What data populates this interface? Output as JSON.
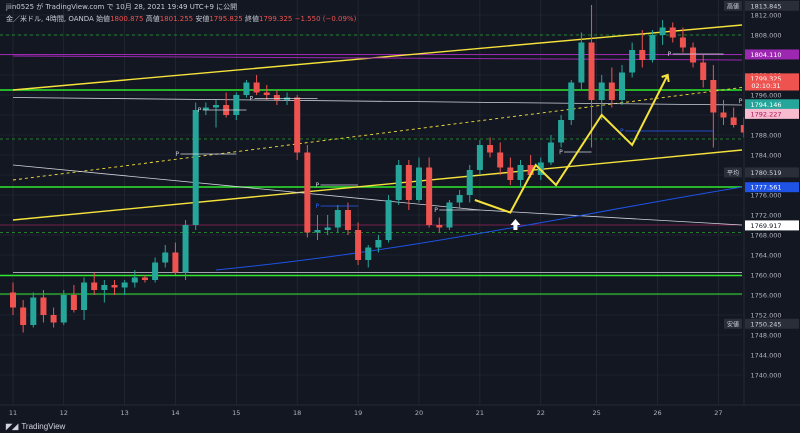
{
  "header": {
    "publish_line": "jiin0525 が TradingView.com で 10月 28, 2021 19:49 UTC+9 に公開",
    "symbol_title": "金／米ドル, 4時間, OANDA",
    "open_label": "始値",
    "open_value": "1800.875",
    "high_label": "高値",
    "high_value": "1801.255",
    "low_label": "安値",
    "low_value": "1795.825",
    "close_label": "終値",
    "close_value": "1799.325",
    "change_value": "−1.550 (−0.09%)"
  },
  "footer": {
    "brand": "TradingView"
  },
  "colors": {
    "bg": "#131722",
    "up": "#26a69a",
    "down": "#ef5350",
    "grid": "#2a2e39",
    "axis_text": "#b2b5be",
    "yellow": "#f5e23b",
    "green": "#2ee82e",
    "purple": "#9c27b0",
    "blue": "#2962ff"
  },
  "chart_data": {
    "type": "candlestick",
    "timeframe": "4時間",
    "ylim": [
      1734,
      1815
    ],
    "yticks": [
      1740,
      1744,
      1748,
      1752,
      1756,
      1760,
      1764,
      1768,
      1772,
      1776,
      1780,
      1784,
      1788,
      1792,
      1796,
      1800,
      1804,
      1808,
      1812
    ],
    "xtick_labels": [
      "11",
      "12",
      "13",
      "14",
      "15",
      "18",
      "19",
      "20",
      "21",
      "22",
      "25",
      "26",
      "27"
    ],
    "price_labels": [
      {
        "text": "高値",
        "value": 1813.845,
        "tag": true,
        "bg": "#2a2e39",
        "fg": "#d1d4dc"
      },
      {
        "text": "1813.845",
        "value": 1813.845,
        "bg": "#2a2e39",
        "fg": "#d1d4dc"
      },
      {
        "text": "1804.110",
        "value": 1804.11,
        "bg": "#9c27b0",
        "fg": "#ffffff"
      },
      {
        "text": "1799.325",
        "value": 1799.325,
        "bg": "#ef5350",
        "fg": "#ffffff"
      },
      {
        "text": "02:10:31",
        "value": 1797.9,
        "bg": "#ef5350",
        "fg": "#ffffff"
      },
      {
        "text": "1794.146",
        "value": 1794.146,
        "bg": "#26a69a",
        "fg": "#ffffff"
      },
      {
        "text": "1792.227",
        "value": 1792.227,
        "bg": "#f8bbd0",
        "fg": "#ad1457"
      },
      {
        "text": "平均",
        "value": 1780.519,
        "tag": true,
        "bg": "#2a2e39",
        "fg": "#d1d4dc"
      },
      {
        "text": "1780.519",
        "value": 1780.519,
        "bg": "#2a2e39",
        "fg": "#d1d4dc"
      },
      {
        "text": "1777.561",
        "value": 1777.561,
        "bg": "#1e53e5",
        "fg": "#ffffff"
      },
      {
        "text": "1769.917",
        "value": 1769.917,
        "bg": "#ffffff",
        "fg": "#131722"
      },
      {
        "text": "安値",
        "value": 1750.245,
        "tag": true,
        "bg": "#2a2e39",
        "fg": "#d1d4dc"
      },
      {
        "text": "1750.245",
        "value": 1750.245,
        "bg": "#2a2e39",
        "fg": "#d1d4dc"
      }
    ],
    "horizontal_lines": [
      {
        "value": 1797.0,
        "color": "#2ee82e",
        "width": 1.6
      },
      {
        "value": 1777.6,
        "color": "#2ee82e",
        "width": 1.6
      },
      {
        "value": 1759.9,
        "color": "#2ee82e",
        "width": 1.4
      },
      {
        "value": 1756.2,
        "color": "#2ee82e",
        "width": 0.9
      },
      {
        "value": 1804.1,
        "color": "#9c27b0",
        "width": 1.0
      },
      {
        "value": 1770.0,
        "color": "#7a1f4f",
        "width": 1.0
      },
      {
        "value": 1808.0,
        "color": "#2ee82e",
        "width": 0.6,
        "dash": true
      },
      {
        "value": 1787.2,
        "color": "#2ee82e",
        "width": 0.6,
        "dash": true
      },
      {
        "value": 1768.5,
        "color": "#2ee82e",
        "width": 0.6,
        "dash": true
      }
    ],
    "trend_lines": [
      {
        "x1": 0,
        "y1": 1797.0,
        "x2": 81,
        "y2": 1810.0,
        "color": "#f5e23b",
        "width": 1.4
      },
      {
        "x1": 0,
        "y1": 1771.0,
        "x2": 81,
        "y2": 1785.0,
        "color": "#f5e23b",
        "width": 1.4
      },
      {
        "x1": 0,
        "y1": 1779.0,
        "x2": 81,
        "y2": 1797.5,
        "color": "#f5e23b",
        "width": 0.9,
        "dash": true
      },
      {
        "x1": 0,
        "y1": 1803.8,
        "x2": 81,
        "y2": 1803.0,
        "color": "#9c27b0",
        "width": 1.0
      },
      {
        "x1": 0,
        "y1": 1795.5,
        "x2": 81,
        "y2": 1794.0,
        "color": "#d1d4dc",
        "width": 0.8
      },
      {
        "x1": 0,
        "y1": 1782.0,
        "x2": 46,
        "y2": 1773.0,
        "color": "#d1d4dc",
        "width": 0.8
      },
      {
        "x1": 46,
        "y1": 1773.0,
        "x2": 81,
        "y2": 1770.0,
        "color": "#d1d4dc",
        "width": 0.8
      },
      {
        "x1": 0,
        "y1": 1760.5,
        "x2": 81,
        "y2": 1760.5,
        "color": "#d1d4dc",
        "width": 0.7
      }
    ],
    "zigzag": [
      {
        "x": 45.5,
        "y": 1775.0
      },
      {
        "x": 49,
        "y": 1772.5
      },
      {
        "x": 51.5,
        "y": 1782.0
      },
      {
        "x": 53.5,
        "y": 1778.0
      },
      {
        "x": 58,
        "y": 1792.0
      },
      {
        "x": 61,
        "y": 1786.0
      },
      {
        "x": 64.5,
        "y": 1800.0
      }
    ],
    "arrow": {
      "x": 49.5,
      "value": 1770.0
    },
    "candles": [
      [
        0,
        1756.5,
        1758.5,
        1752.0,
        1753.5
      ],
      [
        1,
        1753.5,
        1755.0,
        1748.5,
        1750.0
      ],
      [
        2,
        1750.0,
        1756.5,
        1749.5,
        1755.5
      ],
      [
        3,
        1755.5,
        1757.0,
        1750.5,
        1752.0
      ],
      [
        4,
        1752.0,
        1753.5,
        1749.5,
        1750.5
      ],
      [
        5,
        1750.5,
        1757.0,
        1750.0,
        1756.0
      ],
      [
        6,
        1756.0,
        1758.0,
        1752.5,
        1753.0
      ],
      [
        7,
        1753.0,
        1759.5,
        1751.0,
        1758.5
      ],
      [
        8,
        1758.5,
        1760.5,
        1756.0,
        1757.0
      ],
      [
        9,
        1757.0,
        1759.0,
        1754.5,
        1758.0
      ],
      [
        10,
        1758.0,
        1759.0,
        1756.0,
        1757.5
      ],
      [
        11,
        1757.5,
        1759.0,
        1756.0,
        1758.5
      ],
      [
        12,
        1758.5,
        1761.0,
        1757.5,
        1759.5
      ],
      [
        13,
        1759.5,
        1760.0,
        1758.5,
        1759.0
      ],
      [
        14,
        1759.0,
        1763.5,
        1758.5,
        1762.5
      ],
      [
        15,
        1762.5,
        1766.0,
        1761.5,
        1764.5
      ],
      [
        16,
        1764.5,
        1766.5,
        1760.0,
        1760.5
      ],
      [
        17,
        1760.5,
        1771.0,
        1759.0,
        1770.0
      ],
      [
        18,
        1770.0,
        1794.5,
        1769.0,
        1793.0
      ],
      [
        19,
        1793.0,
        1794.5,
        1792.0,
        1793.5
      ],
      [
        20,
        1793.5,
        1795.0,
        1789.5,
        1794.0
      ],
      [
        21,
        1794.0,
        1796.5,
        1791.5,
        1792.0
      ],
      [
        22,
        1792.0,
        1796.5,
        1791.0,
        1796.0
      ],
      [
        23,
        1796.0,
        1799.0,
        1795.5,
        1798.5
      ],
      [
        24,
        1798.5,
        1800.0,
        1796.0,
        1796.5
      ],
      [
        25,
        1796.5,
        1798.0,
        1795.0,
        1796.0
      ],
      [
        26,
        1796.0,
        1797.0,
        1794.0,
        1795.0
      ],
      [
        27,
        1795.0,
        1796.5,
        1794.0,
        1795.5
      ],
      [
        28,
        1795.5,
        1796.0,
        1783.0,
        1784.5
      ],
      [
        29,
        1784.5,
        1786.0,
        1767.5,
        1768.5
      ],
      [
        30,
        1768.5,
        1772.0,
        1767.0,
        1769.0
      ],
      [
        31,
        1769.0,
        1772.0,
        1768.0,
        1769.5
      ],
      [
        32,
        1769.5,
        1774.0,
        1768.5,
        1773.0
      ],
      [
        33,
        1773.0,
        1774.5,
        1768.0,
        1769.0
      ],
      [
        34,
        1769.0,
        1770.5,
        1762.0,
        1763.0
      ],
      [
        35,
        1763.0,
        1766.0,
        1761.5,
        1765.5
      ],
      [
        36,
        1765.5,
        1768.0,
        1764.5,
        1767.0
      ],
      [
        37,
        1767.0,
        1776.0,
        1766.5,
        1775.0
      ],
      [
        38,
        1775.0,
        1783.0,
        1774.0,
        1782.0
      ],
      [
        39,
        1782.0,
        1783.0,
        1773.0,
        1775.0
      ],
      [
        40,
        1775.0,
        1783.5,
        1774.5,
        1781.5
      ],
      [
        41,
        1781.5,
        1783.5,
        1769.5,
        1770.0
      ],
      [
        42,
        1770.0,
        1771.5,
        1768.5,
        1769.5
      ],
      [
        43,
        1769.5,
        1775.0,
        1769.0,
        1774.5
      ],
      [
        44,
        1774.5,
        1777.0,
        1773.5,
        1776.0
      ],
      [
        45,
        1776.0,
        1782.0,
        1774.5,
        1781.0
      ],
      [
        46,
        1781.0,
        1787.0,
        1780.0,
        1786.0
      ],
      [
        47,
        1786.0,
        1787.5,
        1783.5,
        1784.5
      ],
      [
        48,
        1784.5,
        1786.5,
        1780.0,
        1781.5
      ],
      [
        49,
        1781.5,
        1783.5,
        1778.0,
        1779.0
      ],
      [
        50,
        1779.0,
        1783.0,
        1777.5,
        1782.0
      ],
      [
        51,
        1782.0,
        1784.0,
        1779.5,
        1780.0
      ],
      [
        52,
        1780.0,
        1783.5,
        1779.0,
        1782.5
      ],
      [
        53,
        1782.5,
        1788.0,
        1782.0,
        1786.5
      ],
      [
        54,
        1786.5,
        1792.0,
        1785.5,
        1791.0
      ],
      [
        55,
        1791.0,
        1799.0,
        1790.0,
        1798.5
      ],
      [
        56,
        1798.5,
        1808.5,
        1797.0,
        1806.5
      ],
      [
        57,
        1806.5,
        1814.0,
        1785.5,
        1795.0
      ],
      [
        58,
        1795.0,
        1800.0,
        1791.0,
        1798.5
      ],
      [
        59,
        1798.5,
        1801.5,
        1793.5,
        1795.0
      ],
      [
        60,
        1795.0,
        1802.0,
        1794.0,
        1800.5
      ],
      [
        61,
        1800.5,
        1806.5,
        1799.5,
        1805.0
      ],
      [
        62,
        1805.0,
        1809.0,
        1801.5,
        1803.0
      ],
      [
        63,
        1803.0,
        1809.0,
        1802.5,
        1808.0
      ],
      [
        64,
        1808.0,
        1811.0,
        1806.0,
        1809.5
      ],
      [
        65,
        1809.5,
        1810.5,
        1806.5,
        1807.5
      ],
      [
        66,
        1807.5,
        1809.5,
        1804.5,
        1805.5
      ],
      [
        67,
        1805.5,
        1806.5,
        1801.5,
        1802.5
      ],
      [
        68,
        1802.5,
        1804.0,
        1797.5,
        1799.0
      ],
      [
        69,
        1799.0,
        1802.0,
        1785.5,
        1792.5
      ],
      [
        70,
        1792.5,
        1795.0,
        1790.0,
        1791.5
      ],
      [
        71,
        1791.5,
        1793.5,
        1789.5,
        1790.0
      ],
      [
        72,
        1790.0,
        1791.5,
        1787.5,
        1788.5
      ],
      [
        73,
        1788.5,
        1795.0,
        1786.5,
        1794.0
      ]
    ],
    "markers": [
      {
        "text": "P",
        "x": 18.2,
        "value": 1793.0,
        "color": "#d1d4dc",
        "line_to": 23
      },
      {
        "text": "P",
        "x": 23.3,
        "value": 1795.3,
        "color": "#d1d4dc",
        "line_to": 30
      },
      {
        "text": "P",
        "x": 16.0,
        "value": 1784.2,
        "color": "#d1d4dc",
        "line_to": 22
      },
      {
        "text": "P",
        "x": 29.8,
        "value": 1778.0,
        "color": "#d1d4dc",
        "line_to": 34
      },
      {
        "text": "P",
        "x": 29.8,
        "value": 1773.8,
        "color": "#2962ff",
        "line_to": 34
      },
      {
        "text": "P",
        "x": 41.5,
        "value": 1773.0,
        "color": "#d1d4dc",
        "line_to": 46
      },
      {
        "text": "P",
        "x": 53.8,
        "value": 1784.6,
        "color": "#d1d4dc",
        "line_to": 57
      },
      {
        "text": "P",
        "x": 59.8,
        "value": 1788.8,
        "color": "#2962ff",
        "line_to": 69
      },
      {
        "text": "P",
        "x": 64.5,
        "value": 1804.2,
        "color": "#d1d4dc",
        "line_to": 70
      },
      {
        "text": "P",
        "x": 71.5,
        "value": 1794.8,
        "color": "#d1d4dc",
        "line_to": 73
      }
    ]
  }
}
